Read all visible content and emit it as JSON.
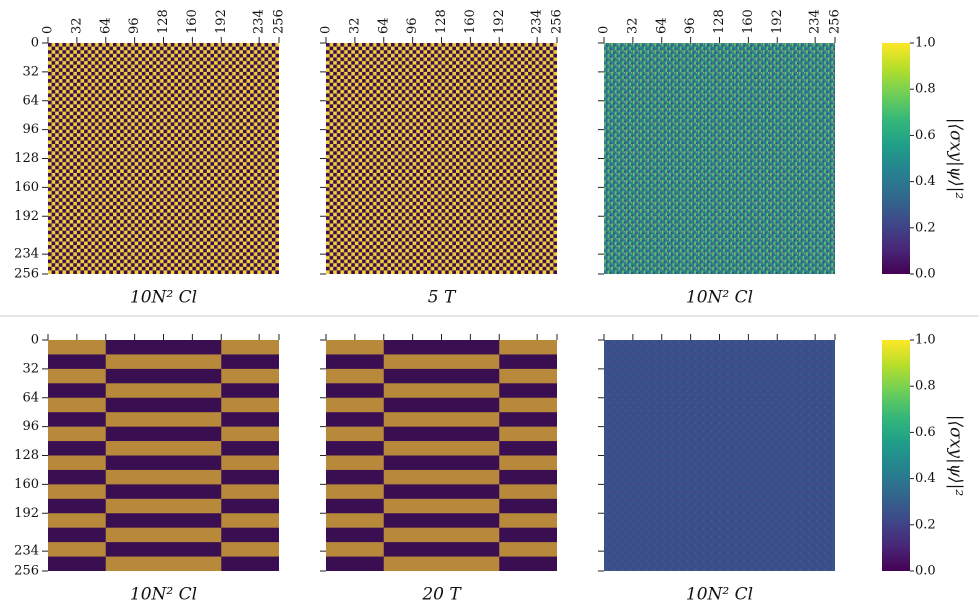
{
  "chart_data": [
    {
      "type": "heatmap",
      "xlabel": "10N² Cl",
      "xlim": [
        0,
        256
      ],
      "ylim": [
        0,
        256
      ],
      "xticks": [
        0,
        32,
        64,
        96,
        128,
        160,
        192,
        234,
        256
      ],
      "yticks": [
        0,
        32,
        64,
        96,
        128,
        160,
        192,
        234,
        256
      ],
      "xtick_labels": true,
      "ytick_labels": true
    },
    {
      "type": "heatmap",
      "xlabel": "5 T",
      "xlim": [
        0,
        256
      ],
      "ylim": [
        0,
        256
      ],
      "xticks": [
        0,
        32,
        64,
        96,
        128,
        160,
        192,
        234,
        256
      ],
      "yticks": [
        0,
        32,
        64,
        96,
        128,
        160,
        192,
        234,
        256
      ],
      "xtick_labels": true,
      "ytick_labels": false
    },
    {
      "type": "heatmap",
      "xlabel": "10N² Cl",
      "xlim": [
        0,
        256
      ],
      "ylim": [
        0,
        256
      ],
      "xticks": [
        0,
        32,
        64,
        96,
        128,
        160,
        192,
        234,
        256
      ],
      "yticks": [
        0,
        32,
        64,
        96,
        128,
        160,
        192,
        234,
        256
      ],
      "xtick_labels": true,
      "ytick_labels": false
    },
    {
      "type": "colorbar",
      "label": "|⟨σxy|ψ⟩|²",
      "ylim": [
        0,
        1
      ],
      "yticks": [
        {
          "value": 0,
          "label": "0.0"
        },
        0.2,
        0.4,
        0.6,
        0.8,
        {
          "value": 1,
          "label": "1.0"
        }
      ],
      "colors": [
        "#440154",
        "#482878",
        "#3e4989",
        "#31688e",
        "#26828e",
        "#1f9e89",
        "#35b779",
        "#6ece58",
        "#b5de2b",
        "#fde725"
      ]
    },
    {
      "type": "heatmap",
      "xlabel": "10N² Cl",
      "xlim": [
        0,
        256
      ],
      "ylim": [
        0,
        256
      ],
      "xticks": [
        0,
        32,
        64,
        96,
        128,
        160,
        192,
        234,
        256
      ],
      "yticks": [
        0,
        32,
        64,
        96,
        128,
        160,
        192,
        234,
        256
      ],
      "xtick_labels": false,
      "ytick_labels": true
    },
    {
      "type": "heatmap",
      "xlabel": "20 T",
      "xlim": [
        0,
        256
      ],
      "ylim": [
        0,
        256
      ],
      "xticks": [
        0,
        32,
        64,
        96,
        128,
        160,
        192,
        234,
        256
      ],
      "yticks": [
        0,
        32,
        64,
        96,
        128,
        160,
        192,
        234,
        256
      ],
      "xtick_labels": false,
      "ytick_labels": false
    },
    {
      "type": "heatmap",
      "xlabel": "10N² Cl",
      "xlim": [
        0,
        256
      ],
      "ylim": [
        0,
        256
      ],
      "xticks": [
        0,
        32,
        64,
        96,
        128,
        160,
        192,
        234,
        256
      ],
      "yticks": [
        0,
        32,
        64,
        96,
        128,
        160,
        192,
        234,
        256
      ],
      "xtick_labels": false,
      "ytick_labels": false
    },
    {
      "type": "colorbar",
      "label": "|⟨σxy|ψ⟩|²",
      "ylim": [
        0,
        1
      ],
      "yticks": [
        {
          "value": 0,
          "label": "0.0"
        },
        0.2,
        0.4,
        0.6,
        0.8,
        {
          "value": 1,
          "label": "1.0"
        }
      ],
      "colors": [
        "#440154",
        "#482878",
        "#3e4989",
        "#31688e",
        "#26828e",
        "#1f9e89",
        "#35b779",
        "#6ece58",
        "#b5de2b",
        "#fde725"
      ]
    }
  ]
}
